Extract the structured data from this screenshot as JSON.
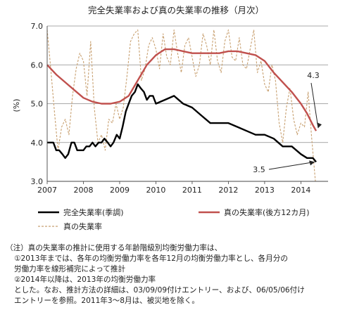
{
  "chart_data": {
    "type": "line",
    "title": "完全失業率および真の失業率の推移（月次）",
    "ylabel": "(%)",
    "ylim": [
      3.0,
      7.0
    ],
    "yticks": [
      "3.0",
      "4.0",
      "5.0",
      "6.0",
      "7.0"
    ],
    "xlim": [
      2007.0,
      2014.75
    ],
    "xticks": [
      "2007",
      "2008",
      "2009",
      "2010",
      "2011",
      "2012",
      "2013",
      "2014"
    ],
    "grid": "horizontal",
    "legend_position": "bottom",
    "series": [
      {
        "name": "完全失業率(季調)",
        "color": "#000000",
        "style": "solid",
        "x": [
          2007.0,
          2007.08,
          2007.17,
          2007.25,
          2007.33,
          2007.42,
          2007.5,
          2007.58,
          2007.67,
          2007.75,
          2007.83,
          2007.92,
          2008.0,
          2008.08,
          2008.17,
          2008.25,
          2008.33,
          2008.42,
          2008.5,
          2008.58,
          2008.67,
          2008.75,
          2008.83,
          2008.92,
          2009.0,
          2009.08,
          2009.17,
          2009.25,
          2009.33,
          2009.42,
          2009.5,
          2009.58,
          2009.67,
          2009.75,
          2009.83,
          2009.92,
          2010.0,
          2010.25,
          2010.5,
          2010.75,
          2011.0,
          2011.25,
          2011.5,
          2011.75,
          2012.0,
          2012.25,
          2012.5,
          2012.75,
          2013.0,
          2013.25,
          2013.5,
          2013.75,
          2014.0,
          2014.17,
          2014.33,
          2014.42
        ],
        "values": [
          4.0,
          4.0,
          4.0,
          3.8,
          3.8,
          3.7,
          3.6,
          3.7,
          4.0,
          4.0,
          3.8,
          3.8,
          3.8,
          3.9,
          3.9,
          4.0,
          3.9,
          4.0,
          4.0,
          4.1,
          4.0,
          3.9,
          4.0,
          4.2,
          4.1,
          4.4,
          4.8,
          5.0,
          5.2,
          5.3,
          5.5,
          5.4,
          5.3,
          5.1,
          5.2,
          5.2,
          5.0,
          5.1,
          5.2,
          5.0,
          4.9,
          4.7,
          4.5,
          4.5,
          4.5,
          4.4,
          4.3,
          4.2,
          4.2,
          4.1,
          3.9,
          3.9,
          3.7,
          3.6,
          3.6,
          3.5
        ]
      },
      {
        "name": "真の失業率(後方12カ月)",
        "color": "#c0504d",
        "style": "solid",
        "x": [
          2007.0,
          2007.25,
          2007.5,
          2007.75,
          2008.0,
          2008.25,
          2008.5,
          2008.75,
          2009.0,
          2009.25,
          2009.5,
          2009.75,
          2010.0,
          2010.25,
          2010.5,
          2010.75,
          2011.0,
          2011.25,
          2011.5,
          2011.75,
          2012.0,
          2012.25,
          2012.5,
          2012.75,
          2013.0,
          2013.25,
          2013.5,
          2013.75,
          2014.0,
          2014.17,
          2014.33,
          2014.42
        ],
        "values": [
          6.0,
          5.75,
          5.55,
          5.35,
          5.15,
          5.05,
          5.0,
          5.0,
          5.05,
          5.2,
          5.6,
          6.0,
          6.25,
          6.4,
          6.4,
          6.35,
          6.3,
          6.3,
          6.3,
          6.3,
          6.35,
          6.35,
          6.3,
          6.25,
          6.1,
          5.8,
          5.55,
          5.3,
          5.0,
          4.75,
          4.45,
          4.3
        ]
      },
      {
        "name": "真の失業率",
        "color": "#c8a070",
        "style": "dashed",
        "x": [
          2007.0,
          2007.1,
          2007.2,
          2007.3,
          2007.4,
          2007.5,
          2007.6,
          2007.7,
          2007.8,
          2007.9,
          2008.0,
          2008.1,
          2008.2,
          2008.3,
          2008.4,
          2008.5,
          2008.6,
          2008.7,
          2008.8,
          2008.9,
          2009.0,
          2009.1,
          2009.2,
          2009.3,
          2009.4,
          2009.5,
          2009.6,
          2009.7,
          2009.8,
          2009.9,
          2010.0,
          2010.1,
          2010.2,
          2010.3,
          2010.4,
          2010.5,
          2010.6,
          2010.7,
          2010.8,
          2010.9,
          2011.0,
          2011.1,
          2011.2,
          2011.3,
          2011.4,
          2011.5,
          2011.6,
          2011.7,
          2011.8,
          2011.9,
          2012.0,
          2012.1,
          2012.2,
          2012.3,
          2012.4,
          2012.5,
          2012.6,
          2012.7,
          2012.8,
          2012.9,
          2013.0,
          2013.1,
          2013.2,
          2013.3,
          2013.4,
          2013.5,
          2013.6,
          2013.7,
          2013.8,
          2013.9,
          2014.0,
          2014.1,
          2014.2,
          2014.3,
          2014.4
        ],
        "values": [
          6.9,
          5.9,
          4.8,
          3.8,
          4.4,
          4.6,
          4.2,
          5.2,
          5.9,
          6.3,
          6.1,
          5.2,
          6.6,
          4.9,
          4.0,
          4.2,
          3.8,
          4.6,
          4.5,
          5.0,
          4.6,
          4.9,
          5.7,
          6.6,
          6.8,
          6.9,
          5.6,
          5.9,
          6.5,
          6.7,
          6.4,
          5.9,
          6.8,
          6.2,
          6.0,
          6.9,
          6.3,
          5.8,
          6.5,
          6.7,
          6.2,
          5.7,
          6.0,
          6.8,
          6.5,
          6.0,
          6.9,
          6.1,
          5.8,
          6.6,
          6.9,
          6.2,
          6.1,
          6.7,
          6.0,
          5.9,
          6.4,
          6.9,
          5.8,
          6.1,
          5.5,
          5.3,
          6.0,
          5.6,
          4.5,
          4.0,
          4.9,
          5.4,
          4.6,
          4.2,
          4.5,
          4.4,
          5.3,
          4.1,
          3.0
        ]
      }
    ],
    "annotations": [
      {
        "text": "4.3",
        "points_to": {
          "x": 2014.42,
          "y": 4.3
        }
      },
      {
        "text": "3.5",
        "points_to": {
          "x": 2014.42,
          "y": 3.5
        }
      }
    ]
  },
  "notes": {
    "line1": "（注）真の失業率の推計に使用する年齢階級別均衡労働力率は、",
    "line2": "①2013年までは、各年の均衡労働力率を各年12月の均衡労働力率とし、各月分の",
    "line3": "労働力率を線形補完によって推計",
    "line4": "②2014年以降は、2013年の均衡労働力率",
    "line5": "とした。なお、推計方法の詳細は、03/09/09付けエントリー、および、06/05/06付け",
    "line6": "エントリーを参照。2011年3～8月は、被災地を除く。"
  }
}
